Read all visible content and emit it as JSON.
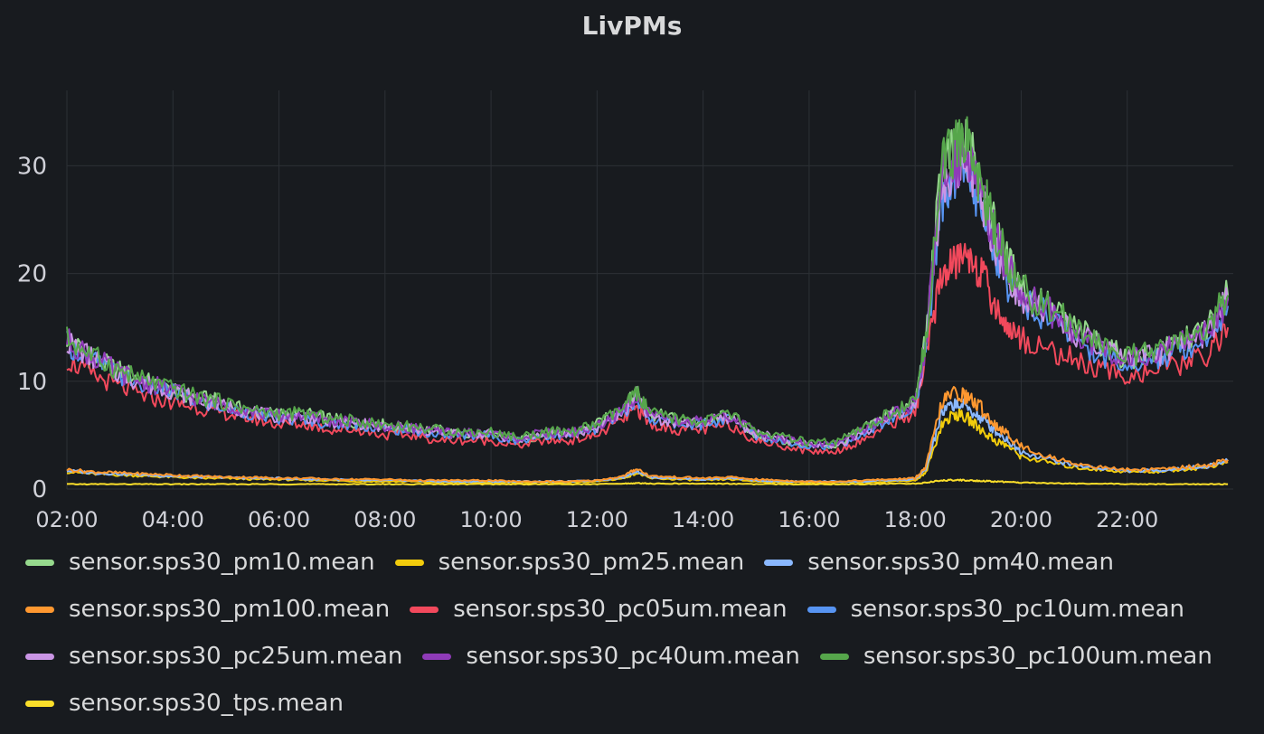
{
  "chart_data": {
    "type": "line",
    "title": "LivPMs",
    "x_unit": "hour of day",
    "xlim": [
      2,
      24
    ],
    "ylim": [
      0,
      36
    ],
    "y_ticks": [
      "0",
      "10",
      "20",
      "30"
    ],
    "x_ticks": [
      "02:00",
      "04:00",
      "06:00",
      "08:00",
      "10:00",
      "12:00",
      "14:00",
      "16:00",
      "18:00",
      "20:00",
      "22:00"
    ],
    "grid": true,
    "legend_position": "bottom",
    "x": [
      2,
      2.5,
      3,
      3.5,
      4,
      4.5,
      5,
      5.5,
      6,
      6.5,
      7,
      7.5,
      8,
      8.5,
      9,
      9.5,
      10,
      10.5,
      11,
      11.5,
      12,
      12.5,
      12.75,
      13,
      13.5,
      14,
      14.5,
      15,
      15.5,
      16,
      16.5,
      17,
      17.5,
      18,
      18.2,
      18.5,
      18.75,
      19,
      19.25,
      19.5,
      19.75,
      20,
      20.5,
      21,
      21.5,
      22,
      22.5,
      23,
      23.5,
      23.9
    ],
    "series": [
      {
        "name": "sensor.sps30_pm10.mean",
        "color": "#96d98d",
        "values": [
          14,
          12,
          11,
          10,
          9,
          8.5,
          8,
          7,
          7,
          7,
          6.5,
          6,
          6,
          5.5,
          5.5,
          5,
          5,
          4.5,
          5,
          5,
          6,
          7.5,
          9,
          7,
          6.5,
          6,
          7,
          5,
          4.5,
          4,
          4,
          5.5,
          7,
          8,
          14,
          30,
          31,
          32,
          29,
          24,
          21,
          19,
          17,
          15,
          13.5,
          12,
          12.5,
          13.5,
          15,
          18
        ]
      },
      {
        "name": "sensor.sps30_pm25.mean",
        "color": "#f2cc0c",
        "values": [
          1.6,
          1.4,
          1.3,
          1.2,
          1.1,
          1,
          1,
          0.9,
          0.9,
          0.8,
          0.8,
          0.7,
          0.7,
          0.7,
          0.6,
          0.6,
          0.6,
          0.6,
          0.6,
          0.6,
          0.7,
          1,
          1.5,
          1,
          0.9,
          0.8,
          0.9,
          0.7,
          0.6,
          0.6,
          0.6,
          0.6,
          0.7,
          0.8,
          1.5,
          6,
          7,
          6.5,
          5.5,
          4.5,
          4,
          3,
          2.5,
          2,
          1.8,
          1.6,
          1.6,
          1.8,
          2,
          2.5
        ]
      },
      {
        "name": "sensor.sps30_pm40.mean",
        "color": "#8ab8ff",
        "values": [
          1.7,
          1.5,
          1.4,
          1.3,
          1.2,
          1.1,
          1.1,
          1,
          1,
          0.9,
          0.9,
          0.8,
          0.8,
          0.8,
          0.7,
          0.7,
          0.7,
          0.7,
          0.7,
          0.7,
          0.8,
          1.1,
          1.7,
          1.1,
          1,
          0.9,
          1,
          0.8,
          0.7,
          0.7,
          0.7,
          0.7,
          0.8,
          0.9,
          1.8,
          7,
          8,
          7.5,
          6.5,
          5.5,
          4.5,
          3.5,
          2.8,
          2.2,
          1.9,
          1.7,
          1.7,
          1.9,
          2.1,
          2.6
        ]
      },
      {
        "name": "sensor.sps30_pm100.mean",
        "color": "#ff9830",
        "values": [
          1.8,
          1.6,
          1.5,
          1.4,
          1.3,
          1.2,
          1.1,
          1.1,
          1,
          1,
          0.9,
          0.9,
          0.9,
          0.8,
          0.8,
          0.8,
          0.8,
          0.7,
          0.7,
          0.7,
          0.8,
          1.2,
          1.9,
          1.2,
          1.1,
          1,
          1.1,
          0.9,
          0.8,
          0.7,
          0.7,
          0.8,
          0.9,
          1,
          2,
          8,
          9,
          8.5,
          7.5,
          6,
          5,
          4,
          3,
          2.4,
          2,
          1.8,
          1.8,
          2,
          2.2,
          2.7
        ]
      },
      {
        "name": "sensor.sps30_pc05um.mean",
        "color": "#f2495c",
        "values": [
          12,
          10.5,
          9.5,
          8.5,
          8,
          7.5,
          7,
          6.5,
          6,
          6,
          5.5,
          5.5,
          5,
          5,
          4.5,
          4.5,
          4.5,
          4,
          4.5,
          4.5,
          5,
          6.5,
          7.5,
          6,
          5.5,
          5.5,
          6,
          4.5,
          4,
          3.5,
          3.5,
          4.5,
          6,
          7,
          12,
          20,
          21,
          22,
          20,
          17,
          15,
          14,
          13,
          12,
          11,
          10.5,
          11,
          11.5,
          12.5,
          15
        ]
      },
      {
        "name": "sensor.sps30_pc10um.mean",
        "color": "#5794f2",
        "values": [
          13.5,
          12,
          10.5,
          9.5,
          9,
          8,
          7.5,
          7,
          6.5,
          6.5,
          6,
          6,
          5.5,
          5.5,
          5,
          5,
          5,
          4.5,
          5,
          5,
          5.5,
          7,
          8.5,
          6.5,
          6,
          6,
          6.5,
          5,
          4.5,
          4,
          4,
          5,
          6.5,
          7.5,
          13,
          27,
          29,
          30,
          26,
          22,
          19,
          17.5,
          16,
          14,
          12.5,
          11.5,
          12,
          13,
          14,
          17
        ]
      },
      {
        "name": "sensor.sps30_pc25um.mean",
        "color": "#ca95e5",
        "values": [
          13.7,
          12.1,
          10.7,
          9.7,
          9.1,
          8.2,
          7.7,
          7.1,
          6.7,
          6.7,
          6.2,
          6.1,
          5.7,
          5.6,
          5.2,
          5.1,
          5.1,
          4.6,
          5.1,
          5.1,
          5.7,
          7.2,
          8.7,
          6.7,
          6.2,
          6.1,
          6.7,
          5.1,
          4.6,
          4.1,
          4.1,
          5.2,
          6.7,
          7.7,
          13.3,
          28,
          30,
          31,
          27,
          23,
          20,
          18,
          16.5,
          14.5,
          13,
          12,
          12.3,
          13.3,
          14.5,
          17.5
        ]
      },
      {
        "name": "sensor.sps30_pc40um.mean",
        "color": "#8f3bb8",
        "values": [
          13.8,
          12.2,
          10.8,
          9.8,
          9.2,
          8.3,
          7.8,
          7.2,
          6.8,
          6.8,
          6.3,
          6.2,
          5.8,
          5.7,
          5.3,
          5.2,
          5.2,
          4.7,
          5.2,
          5.2,
          5.8,
          7.3,
          8.8,
          6.8,
          6.3,
          6.2,
          6.8,
          5.2,
          4.7,
          4.2,
          4.2,
          5.3,
          6.8,
          7.8,
          13.5,
          28.5,
          30.5,
          31.5,
          27.5,
          23.5,
          20.5,
          18.3,
          16.7,
          14.7,
          13.2,
          12.1,
          12.4,
          13.4,
          14.7,
          17.7
        ]
      },
      {
        "name": "sensor.sps30_pc100um.mean",
        "color": "#56a64b",
        "values": [
          14,
          12.3,
          11,
          10,
          9.3,
          8.5,
          8,
          7.3,
          7,
          7,
          6.5,
          6.3,
          6,
          5.8,
          5.5,
          5.3,
          5.3,
          4.8,
          5.3,
          5.3,
          6,
          7.5,
          9,
          7,
          6.5,
          6.3,
          7,
          5.3,
          4.8,
          4.3,
          4.3,
          5.5,
          7,
          8,
          14,
          30,
          31.5,
          32.5,
          28,
          24,
          21,
          18.5,
          17,
          15,
          13.5,
          12.3,
          12.6,
          13.6,
          15,
          18
        ]
      },
      {
        "name": "sensor.sps30_tps.mean",
        "color": "#fade2a",
        "values": [
          0.45,
          0.45,
          0.45,
          0.45,
          0.45,
          0.45,
          0.45,
          0.45,
          0.45,
          0.45,
          0.45,
          0.45,
          0.45,
          0.45,
          0.45,
          0.45,
          0.45,
          0.45,
          0.45,
          0.45,
          0.45,
          0.5,
          0.55,
          0.5,
          0.5,
          0.5,
          0.5,
          0.45,
          0.45,
          0.45,
          0.45,
          0.45,
          0.5,
          0.5,
          0.6,
          0.8,
          0.85,
          0.8,
          0.75,
          0.7,
          0.65,
          0.6,
          0.55,
          0.5,
          0.5,
          0.45,
          0.45,
          0.45,
          0.45,
          0.45
        ]
      }
    ]
  }
}
